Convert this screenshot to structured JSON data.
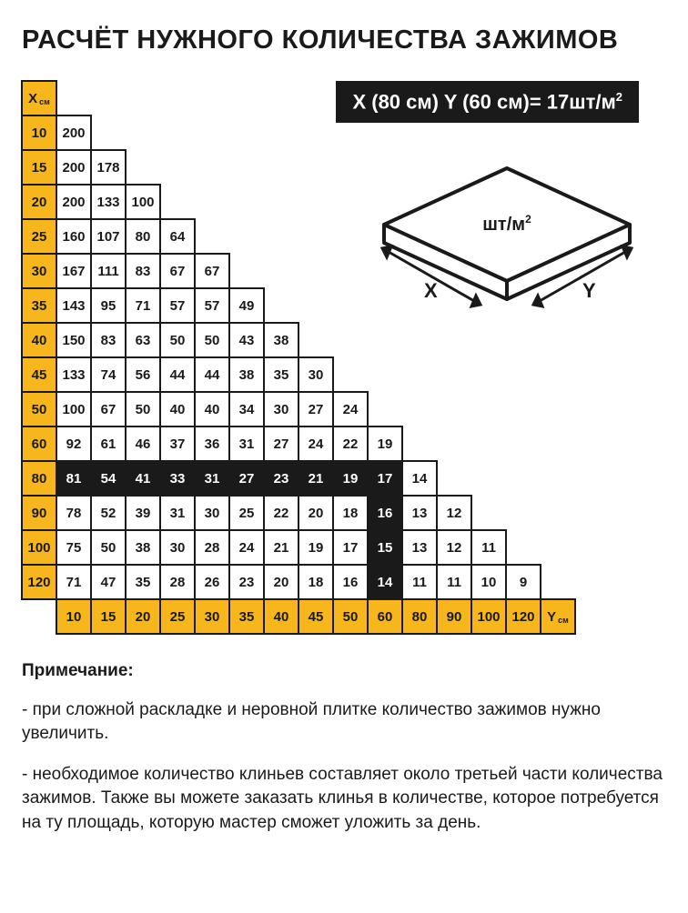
{
  "title": "РАСЧЁТ НУЖНОГО КОЛИЧЕСТВА ЗАЖИМОВ",
  "formula": "X (80 см) Y (60 см)= 17шт/м",
  "formula_sup": "2",
  "diagram_label": "шт/м",
  "diagram_sup": "2",
  "diagram_x": "X",
  "diagram_y": "Y",
  "x_label": "X",
  "x_sub": "см",
  "y_label": "Y",
  "y_sub": "см",
  "colors": {
    "header_bg": "#f7b71c",
    "dark_bg": "#1a1a1a",
    "cell_bg": "#ffffff",
    "border": "#1a1a1a"
  },
  "x_headers": [
    "10",
    "15",
    "20",
    "25",
    "30",
    "35",
    "40",
    "45",
    "50",
    "60",
    "80",
    "90",
    "100",
    "120"
  ],
  "y_headers": [
    "10",
    "15",
    "20",
    "25",
    "30",
    "35",
    "40",
    "45",
    "50",
    "60",
    "80",
    "90",
    "100",
    "120"
  ],
  "rows": [
    {
      "x": "10",
      "cells": [
        {
          "v": "200"
        }
      ]
    },
    {
      "x": "15",
      "cells": [
        {
          "v": "200"
        },
        {
          "v": "178"
        }
      ]
    },
    {
      "x": "20",
      "cells": [
        {
          "v": "200"
        },
        {
          "v": "133"
        },
        {
          "v": "100"
        }
      ]
    },
    {
      "x": "25",
      "cells": [
        {
          "v": "160"
        },
        {
          "v": "107"
        },
        {
          "v": "80"
        },
        {
          "v": "64"
        }
      ]
    },
    {
      "x": "30",
      "cells": [
        {
          "v": "167"
        },
        {
          "v": "111"
        },
        {
          "v": "83"
        },
        {
          "v": "67"
        },
        {
          "v": "67"
        }
      ]
    },
    {
      "x": "35",
      "cells": [
        {
          "v": "143"
        },
        {
          "v": "95"
        },
        {
          "v": "71"
        },
        {
          "v": "57"
        },
        {
          "v": "57"
        },
        {
          "v": "49"
        }
      ]
    },
    {
      "x": "40",
      "cells": [
        {
          "v": "150"
        },
        {
          "v": "83"
        },
        {
          "v": "63"
        },
        {
          "v": "50"
        },
        {
          "v": "50"
        },
        {
          "v": "43"
        },
        {
          "v": "38"
        }
      ]
    },
    {
      "x": "45",
      "cells": [
        {
          "v": "133"
        },
        {
          "v": "74"
        },
        {
          "v": "56"
        },
        {
          "v": "44"
        },
        {
          "v": "44"
        },
        {
          "v": "38"
        },
        {
          "v": "35"
        },
        {
          "v": "30"
        }
      ]
    },
    {
      "x": "50",
      "cells": [
        {
          "v": "100"
        },
        {
          "v": "67"
        },
        {
          "v": "50"
        },
        {
          "v": "40"
        },
        {
          "v": "40"
        },
        {
          "v": "34"
        },
        {
          "v": "30"
        },
        {
          "v": "27"
        },
        {
          "v": "24"
        }
      ]
    },
    {
      "x": "60",
      "cells": [
        {
          "v": "92"
        },
        {
          "v": "61"
        },
        {
          "v": "46"
        },
        {
          "v": "37"
        },
        {
          "v": "36"
        },
        {
          "v": "31"
        },
        {
          "v": "27"
        },
        {
          "v": "24"
        },
        {
          "v": "22"
        },
        {
          "v": "19"
        }
      ]
    },
    {
      "x": "80",
      "cells": [
        {
          "v": "81",
          "d": true
        },
        {
          "v": "54",
          "d": true
        },
        {
          "v": "41",
          "d": true
        },
        {
          "v": "33",
          "d": true
        },
        {
          "v": "31",
          "d": true
        },
        {
          "v": "27",
          "d": true
        },
        {
          "v": "23",
          "d": true
        },
        {
          "v": "21",
          "d": true
        },
        {
          "v": "19",
          "d": true
        },
        {
          "v": "17",
          "d": true
        },
        {
          "v": "14"
        }
      ]
    },
    {
      "x": "90",
      "cells": [
        {
          "v": "78"
        },
        {
          "v": "52"
        },
        {
          "v": "39"
        },
        {
          "v": "31"
        },
        {
          "v": "30"
        },
        {
          "v": "25"
        },
        {
          "v": "22"
        },
        {
          "v": "20"
        },
        {
          "v": "18"
        },
        {
          "v": "16",
          "d": true
        },
        {
          "v": "13"
        },
        {
          "v": "12"
        }
      ]
    },
    {
      "x": "100",
      "cells": [
        {
          "v": "75"
        },
        {
          "v": "50"
        },
        {
          "v": "38"
        },
        {
          "v": "30"
        },
        {
          "v": "28"
        },
        {
          "v": "24"
        },
        {
          "v": "21"
        },
        {
          "v": "19"
        },
        {
          "v": "17"
        },
        {
          "v": "15",
          "d": true
        },
        {
          "v": "13"
        },
        {
          "v": "12"
        },
        {
          "v": "11"
        }
      ]
    },
    {
      "x": "120",
      "cells": [
        {
          "v": "71"
        },
        {
          "v": "47"
        },
        {
          "v": "35"
        },
        {
          "v": "28"
        },
        {
          "v": "26"
        },
        {
          "v": "23"
        },
        {
          "v": "20"
        },
        {
          "v": "18"
        },
        {
          "v": "16"
        },
        {
          "v": "14",
          "d": true
        },
        {
          "v": "11"
        },
        {
          "v": "11"
        },
        {
          "v": "10"
        },
        {
          "v": "9"
        }
      ]
    }
  ],
  "notes_title": "Примечание:",
  "note1": "- при сложной раскладке и неровной плитке количество зажимов нужно увеличить.",
  "note2": "- необходимое количество клиньев составляет около третьей части количества зажимов. Также вы можете заказать клинья в количестве, которое потребуется на ту площадь, которую мастер сможет уложить за день."
}
